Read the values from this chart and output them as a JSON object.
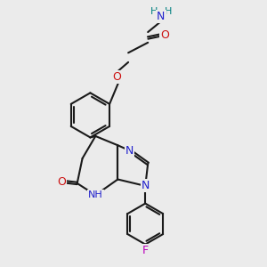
{
  "background_color": "#ebebeb",
  "bond_color": "#1a1a1a",
  "bond_width": 1.5,
  "atom_colors": {
    "N": "#2020cc",
    "O": "#cc1010",
    "F": "#bb00bb",
    "NH": "#2020cc",
    "H2N": "#008080",
    "C": "#1a1a1a"
  },
  "figsize": [
    3.0,
    3.0
  ],
  "dpi": 100
}
